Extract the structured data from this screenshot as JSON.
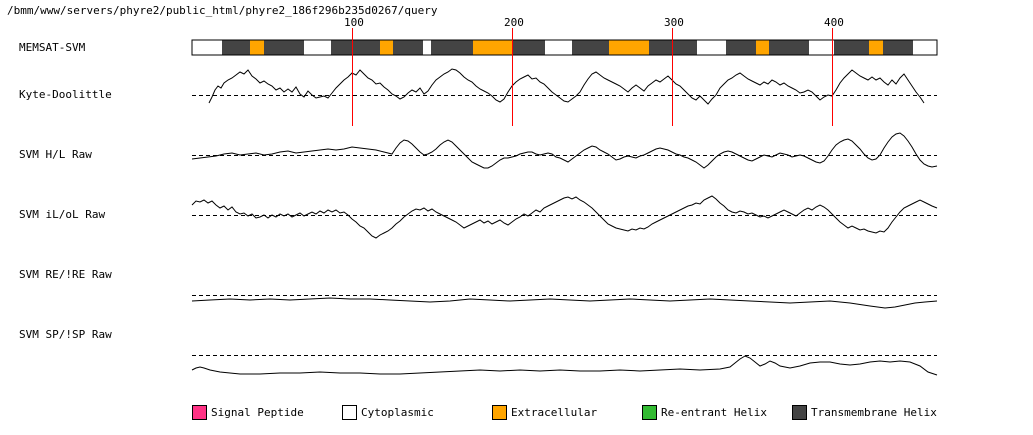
{
  "header": {
    "path": "/bmm/www/servers/phyre2/public_html/phyre2_186f296b235d0267/query"
  },
  "ticks": [
    "100",
    "200",
    "300",
    "400"
  ],
  "tracks": [
    {
      "label": "MEMSAT-SVM"
    },
    {
      "label": "Kyte-Doolittle"
    },
    {
      "label": "SVM H/L Raw"
    },
    {
      "label": "SVM iL/oL Raw"
    },
    {
      "label": "SVM RE/!RE Raw"
    },
    {
      "label": "SVM SP/!SP Raw"
    }
  ],
  "legend": [
    {
      "label": "Signal Peptide",
      "color": "#ff3385"
    },
    {
      "label": "Cytoplasmic",
      "color": "#ffffff"
    },
    {
      "label": "Extracellular",
      "color": "#ffa500"
    },
    {
      "label": "Re-entrant Helix",
      "color": "#33bb33"
    },
    {
      "label": "Transmembrane Helix",
      "color": "#444444"
    }
  ],
  "colors": {
    "tick_line": "#ff0000",
    "trace": "#000000",
    "baseline": "#000000"
  }
}
